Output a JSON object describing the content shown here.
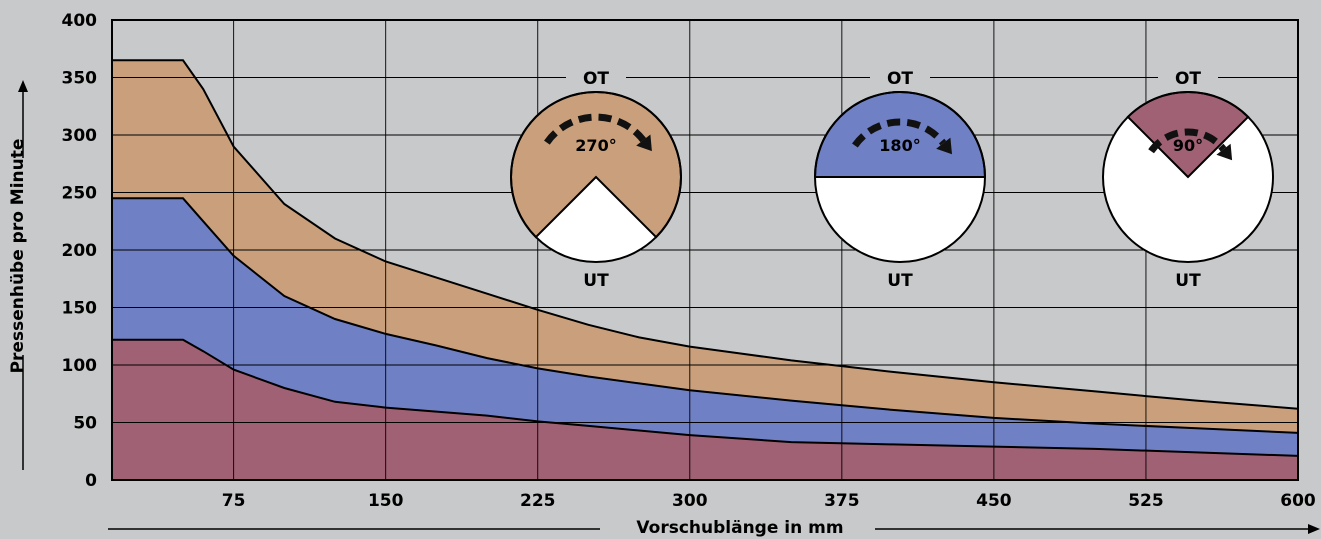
{
  "chart_data": {
    "type": "area",
    "xlabel": "Vorschublänge in mm",
    "ylabel": "Pressenhübe pro Minute",
    "xlim": [
      15,
      600
    ],
    "ylim": [
      0,
      400
    ],
    "xticks": [
      75,
      150,
      225,
      300,
      375,
      450,
      525,
      600
    ],
    "yticks": [
      0,
      50,
      100,
      150,
      200,
      250,
      300,
      350,
      400
    ],
    "grid": true,
    "series": [
      {
        "angle": "270°",
        "color": "#c9a07b",
        "points": [
          [
            15,
            365
          ],
          [
            50,
            365
          ],
          [
            60,
            340
          ],
          [
            75,
            290
          ],
          [
            100,
            240
          ],
          [
            125,
            210
          ],
          [
            150,
            190
          ],
          [
            175,
            176
          ],
          [
            200,
            162
          ],
          [
            225,
            148
          ],
          [
            250,
            135
          ],
          [
            275,
            124
          ],
          [
            300,
            116
          ],
          [
            325,
            110
          ],
          [
            350,
            104
          ],
          [
            375,
            99
          ],
          [
            400,
            94
          ],
          [
            450,
            85
          ],
          [
            500,
            77
          ],
          [
            525,
            73
          ],
          [
            550,
            69
          ],
          [
            600,
            62
          ]
        ]
      },
      {
        "angle": "180°",
        "color": "#7080c4",
        "points": [
          [
            15,
            245
          ],
          [
            50,
            245
          ],
          [
            60,
            225
          ],
          [
            75,
            195
          ],
          [
            100,
            160
          ],
          [
            125,
            140
          ],
          [
            150,
            127
          ],
          [
            175,
            117
          ],
          [
            200,
            106
          ],
          [
            225,
            97
          ],
          [
            250,
            90
          ],
          [
            275,
            84
          ],
          [
            300,
            78
          ],
          [
            350,
            69
          ],
          [
            375,
            65
          ],
          [
            400,
            61
          ],
          [
            450,
            54
          ],
          [
            500,
            49
          ],
          [
            550,
            45
          ],
          [
            600,
            41
          ]
        ]
      },
      {
        "angle": "90°",
        "color": "#a06175",
        "points": [
          [
            15,
            122
          ],
          [
            50,
            122
          ],
          [
            60,
            112
          ],
          [
            75,
            96
          ],
          [
            100,
            80
          ],
          [
            125,
            68
          ],
          [
            150,
            63
          ],
          [
            200,
            56
          ],
          [
            225,
            51
          ],
          [
            250,
            47
          ],
          [
            300,
            39
          ],
          [
            350,
            33
          ],
          [
            400,
            31
          ],
          [
            450,
            29
          ],
          [
            500,
            27
          ],
          [
            550,
            24
          ],
          [
            600,
            21
          ]
        ]
      }
    ]
  },
  "diagrams": [
    {
      "top": "OT",
      "bottom": "UT",
      "angle": "270°",
      "sweep": 270,
      "color": "#c9a07b"
    },
    {
      "top": "OT",
      "bottom": "UT",
      "angle": "180°",
      "sweep": 180,
      "color": "#7080c4"
    },
    {
      "top": "OT",
      "bottom": "UT",
      "angle": "90°",
      "sweep": 90,
      "color": "#a06175"
    }
  ]
}
